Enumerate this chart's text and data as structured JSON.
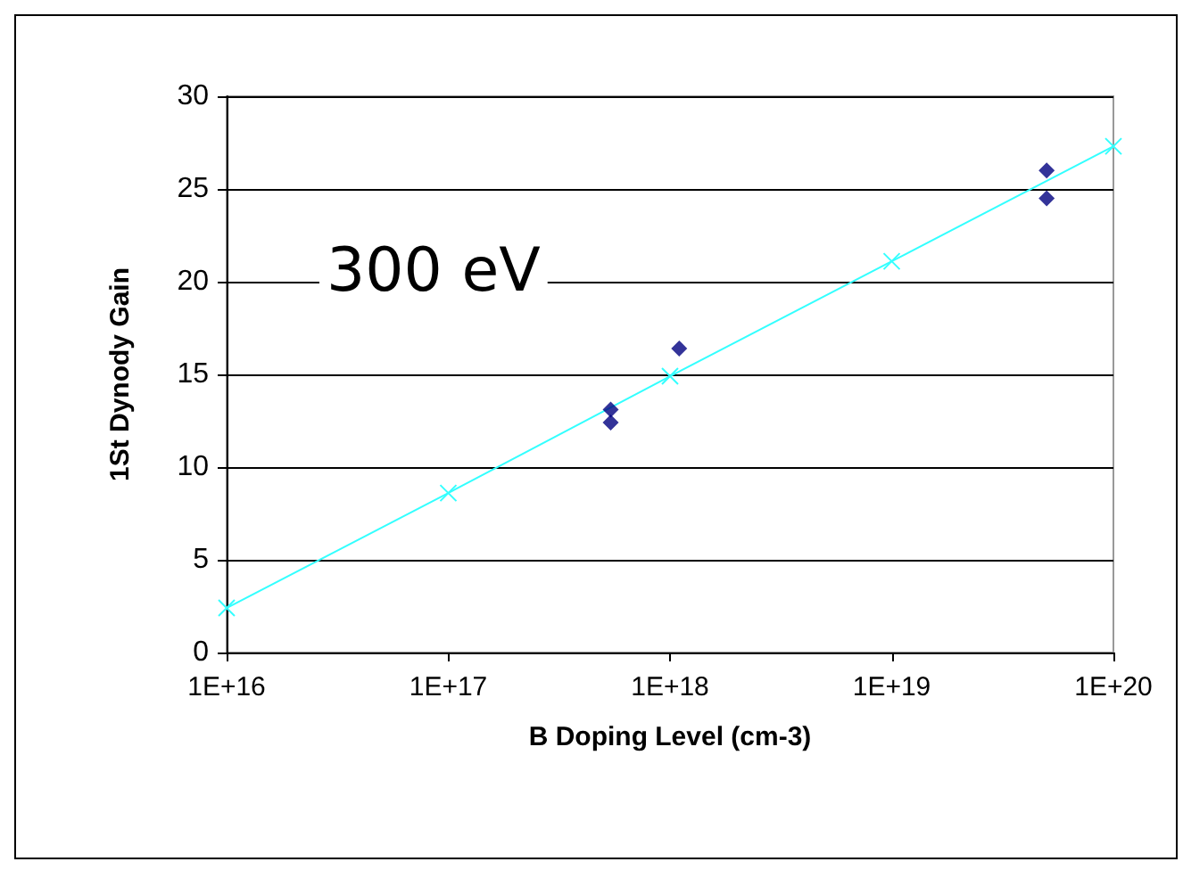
{
  "chart_data": {
    "type": "scatter",
    "xlabel": "B Doping Level (cm-3)",
    "ylabel": "1St Dynody Gain",
    "annotations": [
      "300 eV"
    ],
    "log": "x",
    "grid": "y",
    "xlim": [
      1e+16,
      1e+20
    ],
    "xticks": [
      {
        "value": 1e+16,
        "label": "1E+16"
      },
      {
        "value": 1e+17,
        "label": "1E+17"
      },
      {
        "value": 1e+18,
        "label": "1E+18"
      },
      {
        "value": 1e+19,
        "label": "1E+19"
      },
      {
        "value": 1e+20,
        "label": "1E+20"
      }
    ],
    "ylim": [
      0,
      30
    ],
    "yticks": [
      0,
      5,
      10,
      15,
      20,
      25,
      30
    ],
    "series": [
      {
        "color": "#000080",
        "marker": "diamond",
        "x": [
          5.4e+17,
          5.4e+17,
          1.1e+18,
          5e+19,
          5e+19
        ],
        "values": [
          13.1,
          12.4,
          16.4,
          26.0,
          24.5
        ]
      },
      {
        "type": "line",
        "color": "#33ffff",
        "marker": "cross",
        "x": [
          1e+16,
          1e+17,
          1e+18,
          1e+19,
          1e+20
        ],
        "values": [
          2.4,
          8.6,
          14.9,
          21.1,
          27.3
        ]
      }
    ]
  }
}
